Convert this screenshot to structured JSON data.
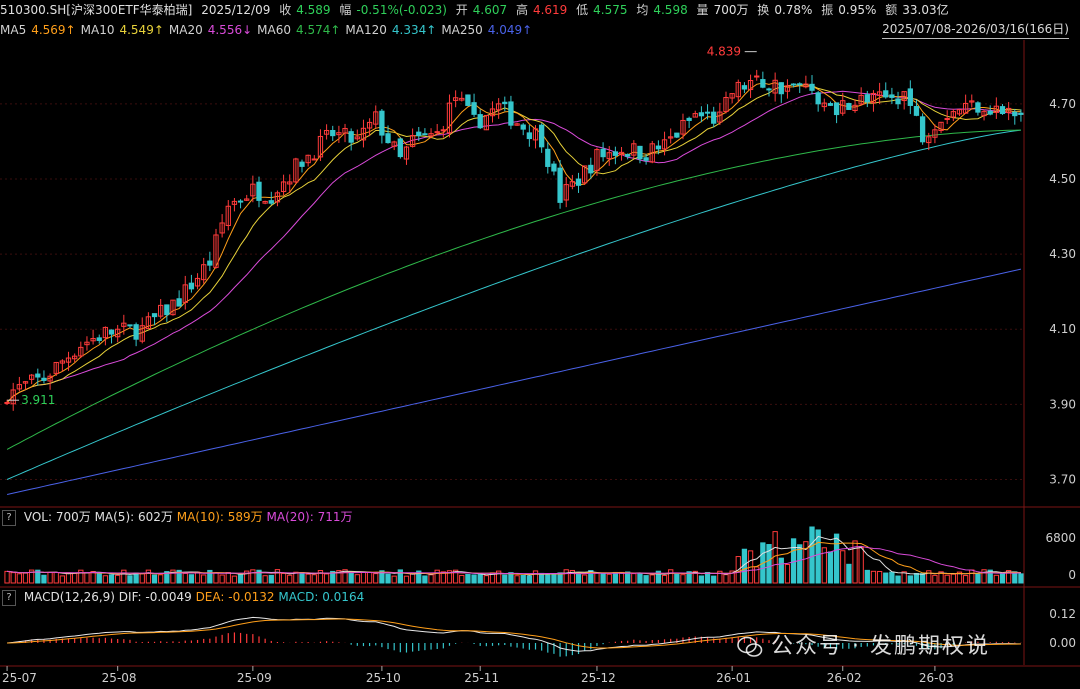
{
  "header": {
    "symbol": "510300.SH[沪深300ETF华泰柏瑞]",
    "date": "2025/12/09",
    "close_label": "收",
    "close": "4.589",
    "change_label": "幅",
    "change": "-0.51%(-0.023)",
    "open_label": "开",
    "open": "4.607",
    "high_label": "高",
    "high": "4.619",
    "low_label": "低",
    "low": "4.575",
    "avg_label": "均",
    "avg": "4.598",
    "vol_label": "量",
    "volume": "700万",
    "turnover_label": "换",
    "turnover": "0.78%",
    "amplitude_label": "振",
    "amplitude": "0.95%",
    "amount_label": "额",
    "amount": "33.03亿",
    "range": "2025/07/08-2026/03/16(166日)"
  },
  "ma_legend": [
    {
      "name": "MA5",
      "value": "4.569↑",
      "color": "#ff9f1a"
    },
    {
      "name": "MA10",
      "value": "4.549↑",
      "color": "#e8d23a"
    },
    {
      "name": "MA20",
      "value": "4.556↓",
      "color": "#d94bd9"
    },
    {
      "name": "MA60",
      "value": "4.574↑",
      "color": "#2fb84a"
    },
    {
      "name": "MA120",
      "value": "4.334↑",
      "color": "#35c6cc"
    },
    {
      "name": "MA250",
      "value": "4.049↑",
      "color": "#4a62e8"
    }
  ],
  "volume_panel": {
    "help": "?",
    "title": "VOL: 700万",
    "ma5": "MA(5): 602万",
    "ma10": "MA(10): 589万",
    "ma20": "MA(20): 711万",
    "ticks": [
      "6800",
      "0"
    ]
  },
  "macd_panel": {
    "help": "?",
    "title": "MACD(12,26,9)",
    "dif": "DIF: -0.0049",
    "dea": "DEA: -0.0132",
    "macd": "MACD: 0.0164",
    "ticks": [
      "0.12",
      "0.00"
    ]
  },
  "watermark": "公众号 · 发鹏期权说",
  "colors": {
    "up": "#ff3b3b",
    "down": "#35c6cc",
    "grid": "#3a0e0e"
  },
  "chart_data": {
    "type": "candlestick",
    "y_ticks": [
      4.7,
      4.5,
      4.3,
      4.1,
      3.9,
      3.7
    ],
    "y_tick_labels": [
      "4.70",
      "4.50",
      "4.30",
      "4.10",
      "3.90",
      "3.70"
    ],
    "ylim": [
      3.64,
      4.87
    ],
    "annotations": [
      {
        "text": "4.839",
        "type": "high"
      },
      {
        "text": "3.911",
        "type": "low"
      }
    ],
    "x_ticks": [
      {
        "label": "25-07",
        "index": 0
      },
      {
        "label": "25-08",
        "index": 18
      },
      {
        "label": "25-09",
        "index": 40
      },
      {
        "label": "25-10",
        "index": 61
      },
      {
        "label": "25-11",
        "index": 77
      },
      {
        "label": "25-12",
        "index": 96
      },
      {
        "label": "26-01",
        "index": 118
      },
      {
        "label": "26-02",
        "index": 136
      },
      {
        "label": "26-03",
        "index": 151
      }
    ],
    "candle_count": 166,
    "close_anchors": [
      [
        0,
        3.93
      ],
      [
        6,
        3.97
      ],
      [
        12,
        4.06
      ],
      [
        16,
        4.09
      ],
      [
        22,
        4.1
      ],
      [
        28,
        4.18
      ],
      [
        33,
        4.28
      ],
      [
        36,
        4.43
      ],
      [
        40,
        4.47
      ],
      [
        43,
        4.46
      ],
      [
        48,
        4.55
      ],
      [
        53,
        4.62
      ],
      [
        57,
        4.6
      ],
      [
        60,
        4.66
      ],
      [
        64,
        4.55
      ],
      [
        66,
        4.6
      ],
      [
        70,
        4.62
      ],
      [
        73,
        4.72
      ],
      [
        76,
        4.65
      ],
      [
        80,
        4.69
      ],
      [
        84,
        4.64
      ],
      [
        87,
        4.61
      ],
      [
        90,
        4.45
      ],
      [
        93,
        4.5
      ],
      [
        96,
        4.56
      ],
      [
        100,
        4.58
      ],
      [
        104,
        4.57
      ],
      [
        107,
        4.59
      ],
      [
        112,
        4.67
      ],
      [
        116,
        4.66
      ],
      [
        118,
        4.73
      ],
      [
        121,
        4.76
      ],
      [
        125,
        4.75
      ],
      [
        131,
        4.74
      ],
      [
        134,
        4.68
      ],
      [
        137,
        4.71
      ],
      [
        142,
        4.71
      ],
      [
        146,
        4.73
      ],
      [
        149,
        4.62
      ],
      [
        152,
        4.67
      ],
      [
        155,
        4.69
      ],
      [
        158,
        4.7
      ],
      [
        162,
        4.68
      ],
      [
        165,
        4.66
      ]
    ],
    "ma_endpoints": {
      "MA60": {
        "start": 3.78,
        "end": 4.63
      },
      "MA120": {
        "start": 3.7,
        "end": 4.63
      },
      "MA250": {
        "start": 3.66,
        "end": 4.26
      }
    }
  }
}
